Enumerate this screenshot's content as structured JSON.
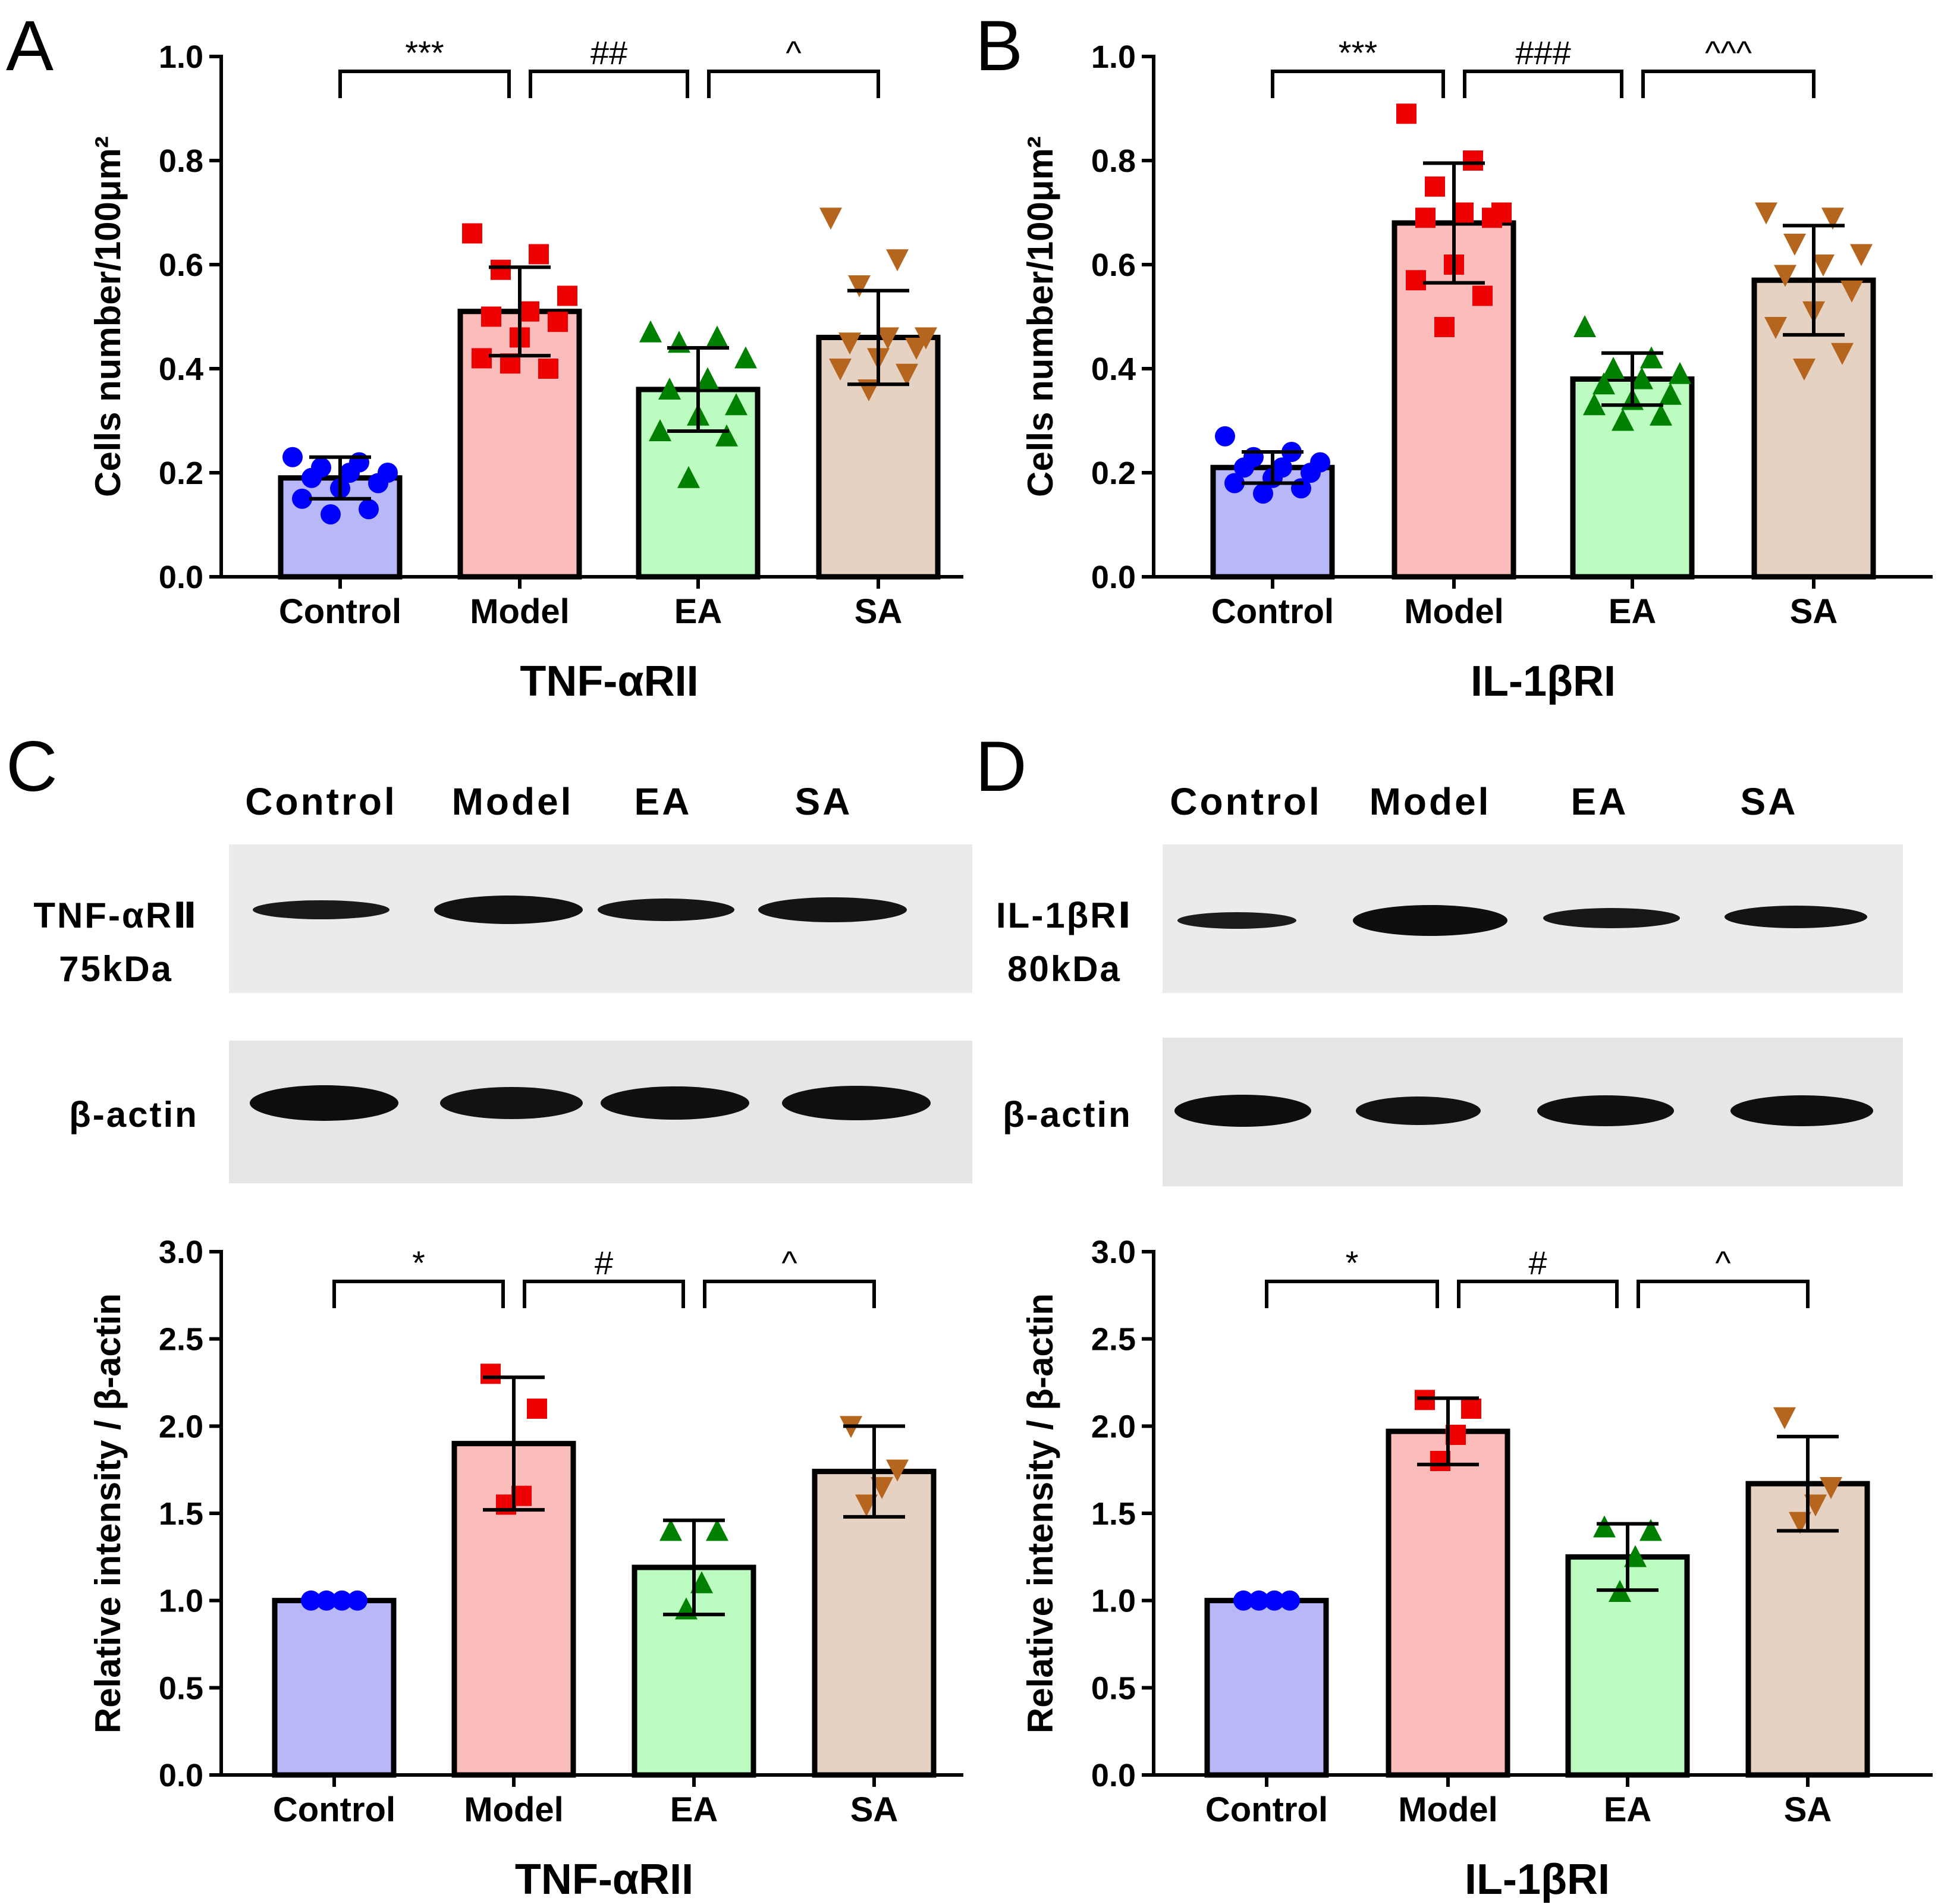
{
  "panels": {
    "A": {
      "letter": "A"
    },
    "B": {
      "letter": "B"
    },
    "C": {
      "letter": "C"
    },
    "D": {
      "letter": "D"
    }
  },
  "colors": {
    "control_fill": "#b8b8f8",
    "model_fill": "#fbbcbc",
    "ea_fill": "#bdfcc0",
    "sa_fill": "#e6d2c2",
    "control_point": "#0000ff",
    "model_point": "#ee0000",
    "ea_point": "#008000",
    "sa_point": "#b5651d"
  },
  "blots": {
    "C": {
      "lanes": [
        "Control",
        "Model",
        "EA",
        "SA"
      ],
      "target_label": "TNF-αRⅡ",
      "target_kda": "75kDa",
      "loading_label": "β-actin"
    },
    "D": {
      "lanes": [
        "Control",
        "Model",
        "EA",
        "SA"
      ],
      "target_label": "IL-1βRⅠ",
      "target_kda": "80kDa",
      "loading_label": "β-actin"
    }
  },
  "chart_data": [
    {
      "panel": "A",
      "type": "bar",
      "categories": [
        "Control",
        "Model",
        "EA",
        "SA"
      ],
      "values": [
        0.19,
        0.51,
        0.36,
        0.46
      ],
      "errors": [
        0.04,
        0.085,
        0.08,
        0.09
      ],
      "points": [
        [
          0.23,
          0.22,
          0.21,
          0.2,
          0.2,
          0.19,
          0.18,
          0.17,
          0.15,
          0.13,
          0.12
        ],
        [
          0.66,
          0.62,
          0.59,
          0.54,
          0.51,
          0.5,
          0.49,
          0.46,
          0.42,
          0.4,
          0.41
        ],
        [
          0.47,
          0.46,
          0.45,
          0.42,
          0.38,
          0.36,
          0.33,
          0.31,
          0.28,
          0.27,
          0.19
        ],
        [
          0.69,
          0.61,
          0.56,
          0.46,
          0.46,
          0.45,
          0.44,
          0.42,
          0.4,
          0.39,
          0.36
        ]
      ],
      "ylabel": "Cells number/100μm²",
      "xlabel": "TNF-αRII",
      "ylim": [
        0,
        1.0
      ],
      "yticks": [
        0.0,
        0.2,
        0.4,
        0.6,
        0.8,
        1.0
      ],
      "ytick_labels": [
        "0.0",
        "0.2",
        "0.4",
        "0.6",
        "0.8",
        "1.0"
      ],
      "significance": [
        {
          "from": 0,
          "to": 1,
          "label": "***"
        },
        {
          "from": 1,
          "to": 2,
          "label": "##"
        },
        {
          "from": 2,
          "to": 3,
          "label": "^"
        }
      ]
    },
    {
      "panel": "B",
      "type": "bar",
      "categories": [
        "Control",
        "Model",
        "EA",
        "SA"
      ],
      "values": [
        0.21,
        0.68,
        0.38,
        0.57
      ],
      "errors": [
        0.03,
        0.115,
        0.05,
        0.105
      ],
      "points": [
        [
          0.27,
          0.24,
          0.23,
          0.22,
          0.21,
          0.21,
          0.2,
          0.19,
          0.18,
          0.17,
          0.16
        ],
        [
          0.89,
          0.8,
          0.75,
          0.7,
          0.7,
          0.69,
          0.69,
          0.6,
          0.57,
          0.54,
          0.48
        ],
        [
          0.48,
          0.42,
          0.4,
          0.39,
          0.38,
          0.37,
          0.35,
          0.34,
          0.33,
          0.31,
          0.3
        ],
        [
          0.7,
          0.69,
          0.64,
          0.62,
          0.6,
          0.58,
          0.55,
          0.51,
          0.48,
          0.43,
          0.4
        ]
      ],
      "ylabel": "Cells number/100μm²",
      "xlabel": "IL-1βRI",
      "ylim": [
        0,
        1.0
      ],
      "yticks": [
        0.0,
        0.2,
        0.4,
        0.6,
        0.8,
        1.0
      ],
      "ytick_labels": [
        "0.0",
        "0.2",
        "0.4",
        "0.6",
        "0.8",
        "1.0"
      ],
      "significance": [
        {
          "from": 0,
          "to": 1,
          "label": "***"
        },
        {
          "from": 1,
          "to": 2,
          "label": "###"
        },
        {
          "from": 2,
          "to": 3,
          "label": "^^^"
        }
      ]
    },
    {
      "panel": "C",
      "type": "bar",
      "categories": [
        "Control",
        "Model",
        "EA",
        "SA"
      ],
      "values": [
        1.0,
        1.9,
        1.19,
        1.74
      ],
      "errors": [
        0.0,
        0.38,
        0.27,
        0.26
      ],
      "points": [
        [
          1.0,
          1.0,
          1.0,
          1.0
        ],
        [
          2.3,
          2.1,
          1.6,
          1.55
        ],
        [
          1.4,
          1.4,
          1.1,
          0.95
        ],
        [
          2.0,
          1.75,
          1.65,
          1.55
        ]
      ],
      "ylabel": "Relative intensity / β-actin",
      "xlabel": "TNF-αRII",
      "ylim": [
        0,
        3.0
      ],
      "yticks": [
        0.0,
        0.5,
        1.0,
        1.5,
        2.0,
        2.5,
        3.0
      ],
      "ytick_labels": [
        "0.0",
        "0.5",
        "1.0",
        "1.5",
        "2.0",
        "2.5",
        "3.0"
      ],
      "significance": [
        {
          "from": 0,
          "to": 1,
          "label": "*"
        },
        {
          "from": 1,
          "to": 2,
          "label": "#"
        },
        {
          "from": 2,
          "to": 3,
          "label": "^"
        }
      ]
    },
    {
      "panel": "D",
      "type": "bar",
      "categories": [
        "Control",
        "Model",
        "EA",
        "SA"
      ],
      "values": [
        1.0,
        1.97,
        1.25,
        1.67
      ],
      "errors": [
        0.0,
        0.19,
        0.19,
        0.27
      ],
      "points": [
        [
          1.0,
          1.0,
          1.0,
          1.0
        ],
        [
          2.15,
          2.1,
          1.95,
          1.8
        ],
        [
          1.42,
          1.4,
          1.25,
          1.05
        ],
        [
          2.05,
          1.65,
          1.55,
          1.45
        ]
      ],
      "ylabel": "Relative intensity / β-actin",
      "xlabel": "IL-1βRI",
      "ylim": [
        0,
        3.0
      ],
      "yticks": [
        0.0,
        0.5,
        1.0,
        1.5,
        2.0,
        2.5,
        3.0
      ],
      "ytick_labels": [
        "0.0",
        "0.5",
        "1.0",
        "1.5",
        "2.0",
        "2.5",
        "3.0"
      ],
      "significance": [
        {
          "from": 0,
          "to": 1,
          "label": "*"
        },
        {
          "from": 1,
          "to": 2,
          "label": "#"
        },
        {
          "from": 2,
          "to": 3,
          "label": "^"
        }
      ]
    }
  ]
}
